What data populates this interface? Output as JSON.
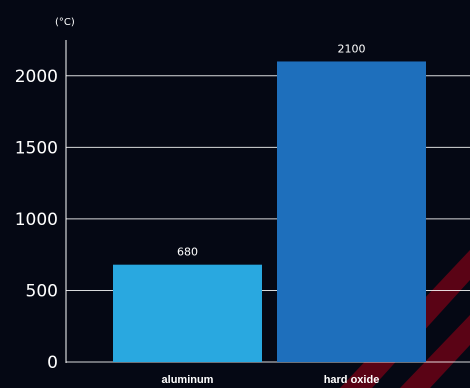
{
  "chart_data": {
    "type": "bar",
    "title": "",
    "ylabel": "(°C)",
    "xlabel": "",
    "categories": [
      "aluminum",
      "hard oxide"
    ],
    "values": [
      680,
      2100
    ],
    "data_labels": [
      "680",
      "2100"
    ],
    "colors": [
      "#29a8e0",
      "#1e6fbc"
    ],
    "ylim": [
      0,
      2250
    ],
    "yticks": [
      0,
      500,
      1000,
      1500,
      2000
    ],
    "grid": true,
    "legend": "none"
  },
  "watermark": {
    "color": "#c0001a"
  }
}
